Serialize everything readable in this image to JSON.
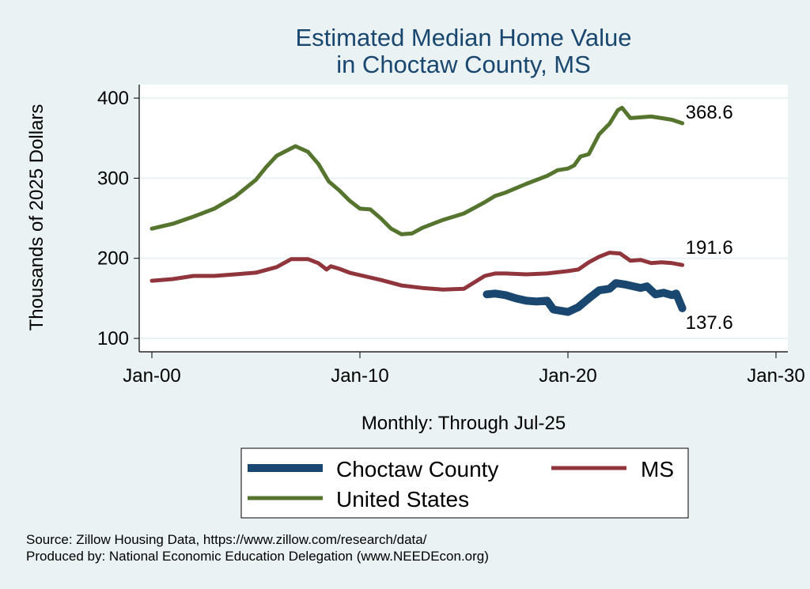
{
  "chart_data": {
    "type": "line",
    "title": [
      "Estimated Median Home Value",
      "in Choctaw County, MS"
    ],
    "xlabel": "Monthly: Through Jul-25",
    "ylabel": "Thousands of 2025 Dollars",
    "xlim": [
      2000,
      2030
    ],
    "ylim": [
      100,
      400
    ],
    "xticks": [
      {
        "v": 2000,
        "label": "Jan-00"
      },
      {
        "v": 2010,
        "label": "Jan-10"
      },
      {
        "v": 2020,
        "label": "Jan-20"
      },
      {
        "v": 2030,
        "label": "Jan-30"
      }
    ],
    "yticks": [
      100,
      200,
      300,
      400
    ],
    "grid": true,
    "legend_position": "bottom",
    "series": [
      {
        "name": "Choctaw County",
        "color": "#1a476f",
        "end_label": "137.6",
        "points": [
          [
            2016.1,
            155
          ],
          [
            2016.5,
            156
          ],
          [
            2017,
            154
          ],
          [
            2017.5,
            150
          ],
          [
            2018,
            147
          ],
          [
            2018.5,
            146
          ],
          [
            2019,
            147
          ],
          [
            2019.3,
            136
          ],
          [
            2020,
            133
          ],
          [
            2020.5,
            139
          ],
          [
            2021,
            150
          ],
          [
            2021.5,
            160
          ],
          [
            2022,
            162
          ],
          [
            2022.3,
            169
          ],
          [
            2022.8,
            167
          ],
          [
            2023.5,
            163
          ],
          [
            2023.8,
            165
          ],
          [
            2024.2,
            155
          ],
          [
            2024.6,
            157
          ],
          [
            2025,
            154
          ],
          [
            2025.2,
            156
          ],
          [
            2025.5,
            137.6
          ]
        ]
      },
      {
        "name": "MS",
        "color": "#90353b",
        "end_label": "191.6",
        "points": [
          [
            2000,
            172
          ],
          [
            2001,
            174
          ],
          [
            2002,
            178
          ],
          [
            2003,
            178
          ],
          [
            2004,
            180
          ],
          [
            2005,
            182
          ],
          [
            2006,
            189
          ],
          [
            2006.7,
            199
          ],
          [
            2007.5,
            199
          ],
          [
            2008,
            194
          ],
          [
            2008.4,
            186
          ],
          [
            2008.6,
            190
          ],
          [
            2009,
            187
          ],
          [
            2009.5,
            182
          ],
          [
            2010,
            179
          ],
          [
            2011,
            173
          ],
          [
            2012,
            166
          ],
          [
            2013,
            163
          ],
          [
            2014,
            161
          ],
          [
            2015,
            162
          ],
          [
            2016,
            178
          ],
          [
            2016.5,
            181
          ],
          [
            2017,
            181
          ],
          [
            2018,
            180
          ],
          [
            2019,
            181
          ],
          [
            2020,
            184
          ],
          [
            2020.5,
            186
          ],
          [
            2021,
            195
          ],
          [
            2021.5,
            202
          ],
          [
            2022,
            207
          ],
          [
            2022.5,
            206
          ],
          [
            2023,
            197
          ],
          [
            2023.5,
            198
          ],
          [
            2024,
            194
          ],
          [
            2024.5,
            195
          ],
          [
            2025,
            194
          ],
          [
            2025.5,
            191.6
          ]
        ]
      },
      {
        "name": "United States",
        "color": "#55752f",
        "end_label": "368.6",
        "points": [
          [
            2000,
            237
          ],
          [
            2001,
            243
          ],
          [
            2002,
            252
          ],
          [
            2003,
            262
          ],
          [
            2004,
            277
          ],
          [
            2005,
            298
          ],
          [
            2005.5,
            314
          ],
          [
            2006,
            328
          ],
          [
            2006.9,
            340
          ],
          [
            2007.5,
            333
          ],
          [
            2008,
            318
          ],
          [
            2008.5,
            296
          ],
          [
            2009,
            285
          ],
          [
            2009.5,
            272
          ],
          [
            2010,
            262
          ],
          [
            2010.5,
            261
          ],
          [
            2011,
            250
          ],
          [
            2011.5,
            237
          ],
          [
            2012,
            230
          ],
          [
            2012.5,
            231
          ],
          [
            2013,
            238
          ],
          [
            2014,
            248
          ],
          [
            2015,
            256
          ],
          [
            2016,
            270
          ],
          [
            2016.5,
            278
          ],
          [
            2017,
            282
          ],
          [
            2018,
            293
          ],
          [
            2019,
            303
          ],
          [
            2019.5,
            310
          ],
          [
            2020,
            312
          ],
          [
            2020.3,
            316
          ],
          [
            2020.6,
            327
          ],
          [
            2021,
            330
          ],
          [
            2021.5,
            355
          ],
          [
            2022,
            368
          ],
          [
            2022.4,
            385
          ],
          [
            2022.6,
            388
          ],
          [
            2023,
            375
          ],
          [
            2023.5,
            376
          ],
          [
            2024,
            377
          ],
          [
            2024.5,
            375
          ],
          [
            2025,
            373
          ],
          [
            2025.5,
            368.6
          ]
        ]
      }
    ]
  },
  "notes": [
    "Source: Zillow Housing Data, https://www.zillow.com/research/data/",
    "Produced by: National Economic Education Delegation (www.NEEDEcon.org)"
  ]
}
